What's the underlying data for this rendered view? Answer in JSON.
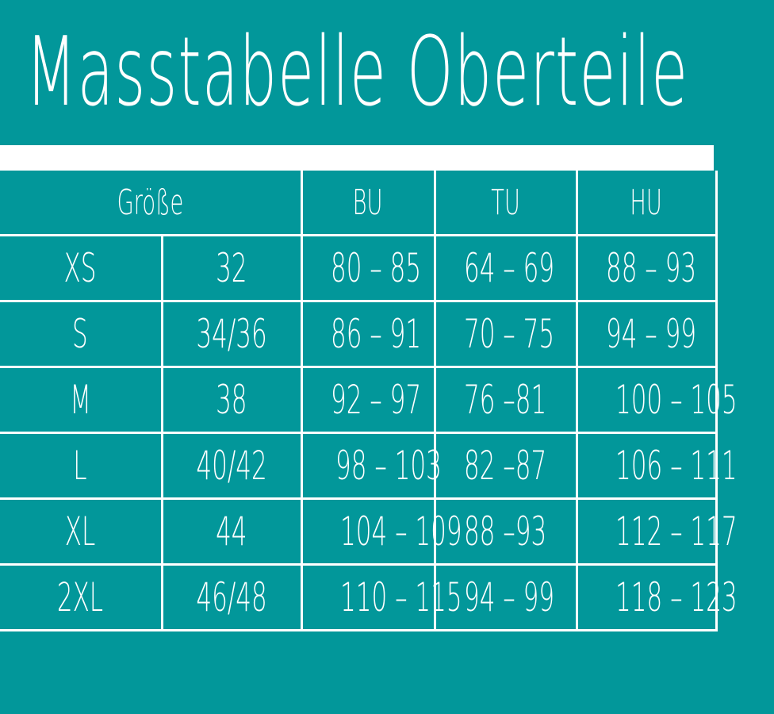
{
  "title": "Masstabelle Oberteile",
  "colors": {
    "background": "#02979a",
    "lines": "#ffffff",
    "text": "#ffffff"
  },
  "headers": {
    "size": "Größe",
    "bu": "BU",
    "tu": "TU",
    "hu": "HU"
  },
  "rows": [
    {
      "label": "XS",
      "size": "32",
      "bu": "80 – 85",
      "tu": "64 – 69",
      "hu": "88 – 93"
    },
    {
      "label": "S",
      "size": "34/36",
      "bu": "86 – 91",
      "tu": "70 – 75",
      "hu": "94 – 99"
    },
    {
      "label": "M",
      "size": "38",
      "bu": "92 – 97",
      "tu": "76 –81",
      "hu": "100 – 105"
    },
    {
      "label": "L",
      "size": "40/42",
      "bu": "98 – 103",
      "tu": "82 –87",
      "hu": "106 – 111"
    },
    {
      "label": "XL",
      "size": "44",
      "bu": "104 – 109",
      "tu": "88 –93",
      "hu": "112 – 117"
    },
    {
      "label": "2XL",
      "size": "46/48",
      "bu": "110 – 115",
      "tu": "94 – 99",
      "hu": "118 – 123"
    }
  ]
}
